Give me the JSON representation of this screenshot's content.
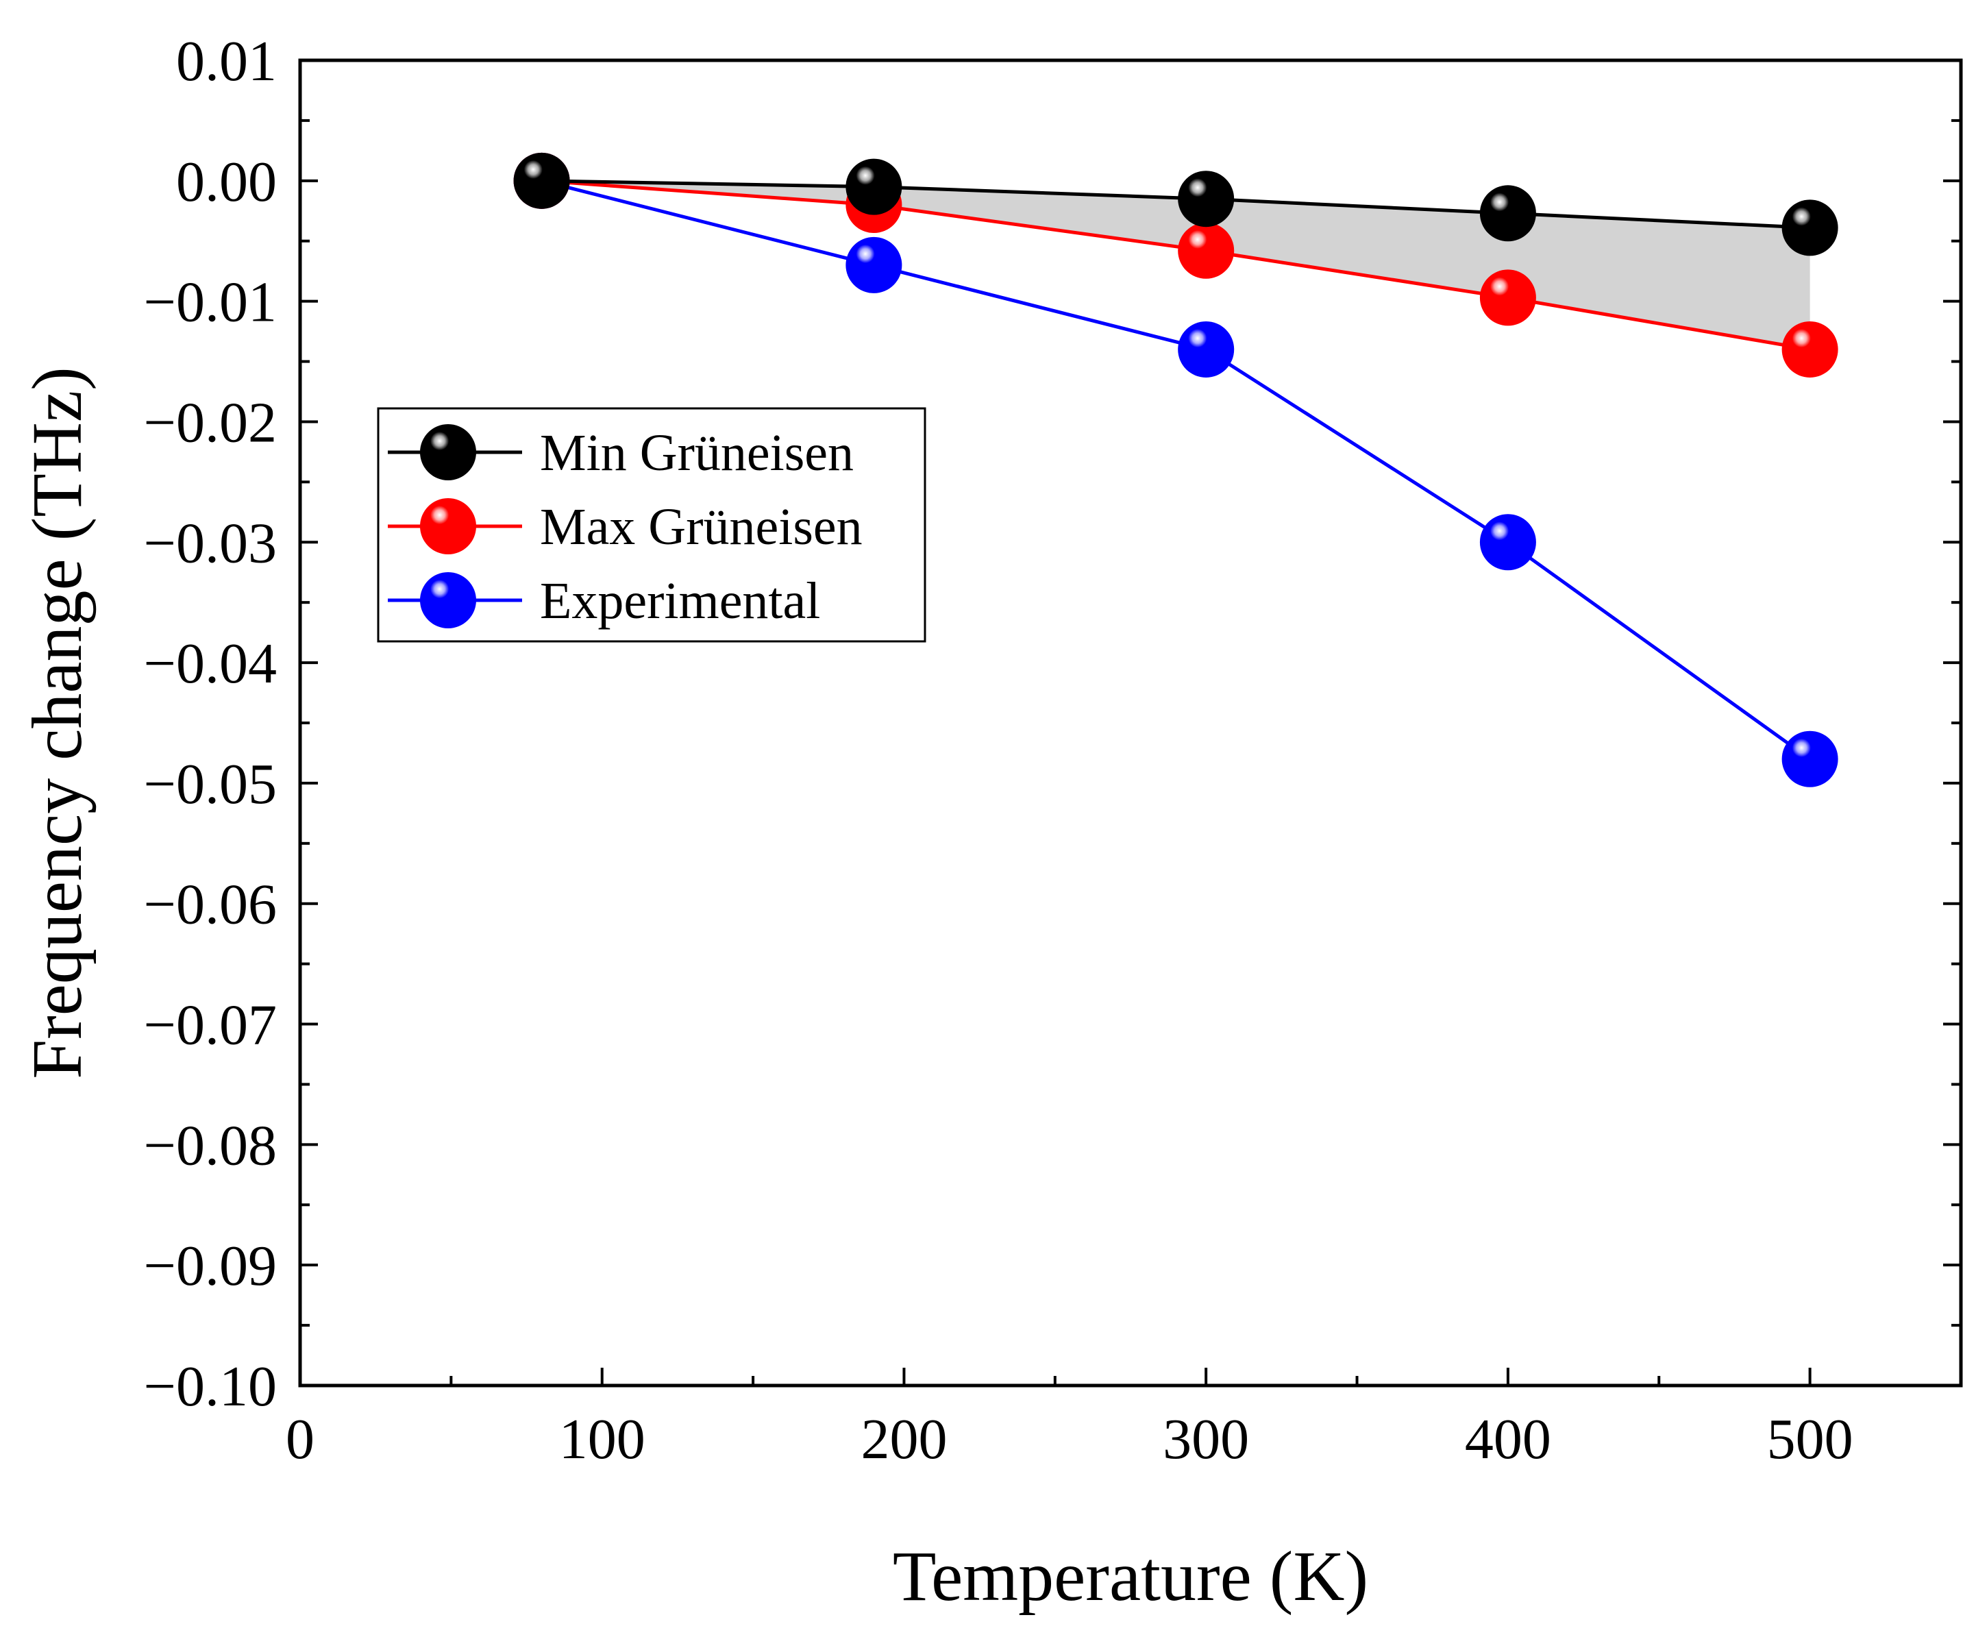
{
  "chart_data": {
    "type": "line",
    "title": "",
    "xlabel": "Temperature (K)",
    "ylabel": "Frequency change (THz)",
    "xlim": [
      0,
      550
    ],
    "ylim": [
      -0.1,
      0.01
    ],
    "x_ticks": [
      0,
      100,
      200,
      300,
      400,
      500
    ],
    "x_tick_labels": [
      "0",
      "100",
      "200",
      "300",
      "400",
      "500"
    ],
    "y_ticks": [
      0.01,
      0.0,
      -0.01,
      -0.02,
      -0.03,
      -0.04,
      -0.05,
      -0.06,
      -0.07,
      -0.08,
      -0.09,
      -0.1
    ],
    "y_tick_labels": [
      "0.01",
      "0.00",
      "−0.01",
      "−0.02",
      "−0.03",
      "−0.04",
      "−0.05",
      "−0.06",
      "−0.07",
      "−0.08",
      "−0.09",
      "−0.10"
    ],
    "grid": false,
    "legend_position": "upper-left",
    "shaded_region": {
      "between": [
        "Min Grüneisen",
        "Max Grüneisen"
      ],
      "color": "#d3d3d3"
    },
    "series": [
      {
        "name": "Min Grüneisen",
        "color": "#000000",
        "x": [
          80,
          190,
          300,
          400,
          500
        ],
        "values": [
          0.0,
          -0.0005,
          -0.0015,
          -0.0027,
          -0.0039
        ]
      },
      {
        "name": "Max Grüneisen",
        "color": "#ff0000",
        "x": [
          80,
          190,
          300,
          400,
          500
        ],
        "values": [
          0.0,
          -0.002,
          -0.0058,
          -0.0097,
          -0.014
        ]
      },
      {
        "name": "Experimental",
        "color": "#0000ff",
        "x": [
          80,
          190,
          300,
          400,
          500
        ],
        "values": [
          0.0,
          -0.007,
          -0.014,
          -0.03,
          -0.048
        ]
      }
    ]
  }
}
